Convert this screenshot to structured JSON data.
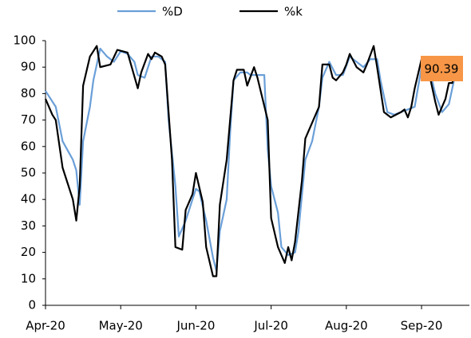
{
  "chart_data": {
    "type": "line",
    "xlim": [
      0,
      124
    ],
    "xticks": [
      {
        "value": 0,
        "label": "Apr-20"
      },
      {
        "value": 22,
        "label": "May-20"
      },
      {
        "value": 44,
        "label": "Jun-20"
      },
      {
        "value": 66,
        "label": "Jul-20"
      },
      {
        "value": 88,
        "label": "Aug-20"
      },
      {
        "value": 110,
        "label": "Sep-20"
      }
    ],
    "ylim": [
      0,
      100
    ],
    "yticks": [
      0,
      10,
      20,
      30,
      40,
      50,
      60,
      70,
      80,
      90,
      100
    ],
    "grid": false,
    "legend": "top",
    "series": [
      {
        "name": "%D",
        "color": "#6a9fd8",
        "x": [
          0,
          3,
          5,
          8,
          9,
          10,
          11,
          13,
          14,
          16,
          18,
          20,
          22,
          24,
          26,
          27,
          29,
          31,
          33,
          35,
          36,
          38,
          39,
          41,
          43,
          44,
          45,
          47,
          49,
          50,
          51,
          53,
          54,
          55,
          57,
          59,
          60,
          62,
          64,
          65,
          66,
          68,
          69,
          71,
          73,
          74,
          76,
          78,
          80,
          81,
          83,
          85,
          87,
          89,
          91,
          93,
          95,
          97,
          98,
          100,
          102,
          104,
          106,
          108,
          110,
          112,
          114,
          116,
          118,
          120
        ],
        "values": [
          81,
          75,
          62,
          55,
          51,
          38,
          62,
          75,
          85,
          97,
          94,
          92,
          96,
          95,
          92,
          87,
          86,
          94,
          94,
          92,
          70,
          45,
          26,
          32,
          40,
          44,
          43,
          32,
          18,
          13,
          28,
          40,
          65,
          85,
          88,
          88,
          87,
          87,
          87,
          59,
          45,
          35,
          22,
          19,
          20,
          28,
          55,
          62,
          75,
          86,
          92,
          87,
          87,
          94,
          92,
          90,
          93,
          93,
          85,
          73,
          72,
          73,
          74,
          75,
          90,
          91,
          80,
          73,
          76,
          88
        ]
      },
      {
        "name": "%k",
        "color": "#000000",
        "x": [
          0,
          2,
          3,
          5,
          8,
          9,
          10,
          11,
          13,
          15,
          16,
          19,
          21,
          24,
          27,
          28,
          30,
          31,
          32,
          34,
          35,
          37,
          38,
          40,
          41,
          43,
          44,
          46,
          47,
          49,
          50,
          51,
          53,
          55,
          56,
          58,
          59,
          61,
          62,
          65,
          66,
          68,
          70,
          71,
          72,
          73,
          75,
          76,
          78,
          80,
          81,
          83,
          84,
          85,
          87,
          88,
          89,
          91,
          93,
          94,
          96,
          97,
          99,
          101,
          104,
          105,
          106,
          107,
          108,
          110,
          112,
          114,
          115,
          117,
          118,
          119,
          120
        ],
        "values": [
          78,
          72,
          70,
          52,
          40,
          32,
          45,
          83,
          94,
          98,
          90,
          91,
          96.5,
          95.5,
          82,
          88,
          95,
          93,
          95.5,
          94,
          91,
          55,
          22,
          21,
          36,
          42,
          50,
          39,
          22,
          11,
          11,
          38,
          55,
          85,
          89,
          89,
          83,
          90,
          86,
          70,
          33,
          22,
          16,
          22,
          17,
          24,
          47,
          63,
          69,
          75,
          91,
          91,
          86,
          85,
          88,
          91,
          95,
          90,
          88,
          91,
          98,
          90,
          73,
          71,
          73,
          74,
          71,
          75,
          82,
          93,
          89,
          77,
          72,
          78,
          84,
          84,
          90
        ]
      }
    ],
    "annotation": "90.39"
  }
}
